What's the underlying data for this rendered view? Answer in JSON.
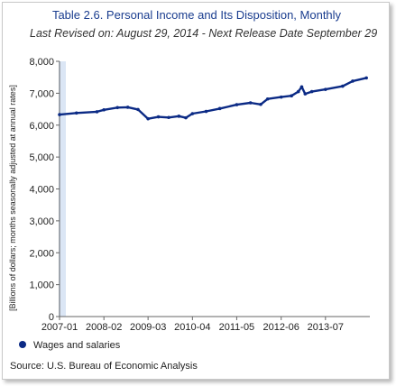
{
  "chart_data": {
    "type": "line",
    "title": "Table 2.6. Personal Income and Its Disposition, Monthly",
    "subtitle": "Last Revised on: August 29, 2014 - Next Release Date September 29",
    "ylabel": "[Billions of dollars; months seasonally adjusted at annual rates]",
    "xlabel": "",
    "ylim": [
      0,
      8000
    ],
    "yticks": [
      0,
      1000,
      2000,
      3000,
      4000,
      5000,
      6000,
      7000,
      8000
    ],
    "ytick_labels": [
      "0",
      "1,000",
      "2,000",
      "3,000",
      "4,000",
      "5,000",
      "6,000",
      "7,000",
      "8,000"
    ],
    "xtick_labels": [
      "2007-01",
      "2008-02",
      "2009-03",
      "2010-04",
      "2011-05",
      "2012-06",
      "2013-07"
    ],
    "grid": false,
    "legend_position": "bottom-left",
    "series": [
      {
        "name": "Wages and salaries",
        "color": "#0b2a85",
        "x": [
          "2007-01",
          "2007-06",
          "2007-12",
          "2008-02",
          "2008-06",
          "2008-09",
          "2008-12",
          "2009-03",
          "2009-06",
          "2009-09",
          "2009-12",
          "2010-02",
          "2010-04",
          "2010-08",
          "2010-12",
          "2011-05",
          "2011-09",
          "2011-12",
          "2012-02",
          "2012-06",
          "2012-09",
          "2012-11",
          "2012-12",
          "2013-01",
          "2013-03",
          "2013-07",
          "2013-12",
          "2014-03",
          "2014-07"
        ],
        "values": [
          6330,
          6380,
          6420,
          6480,
          6550,
          6560,
          6490,
          6200,
          6260,
          6240,
          6280,
          6230,
          6360,
          6430,
          6520,
          6640,
          6700,
          6650,
          6820,
          6880,
          6920,
          7050,
          7200,
          6980,
          7050,
          7120,
          7220,
          7380,
          7480
        ]
      }
    ]
  },
  "source": "Source: U.S. Bureau of Economic Analysis"
}
